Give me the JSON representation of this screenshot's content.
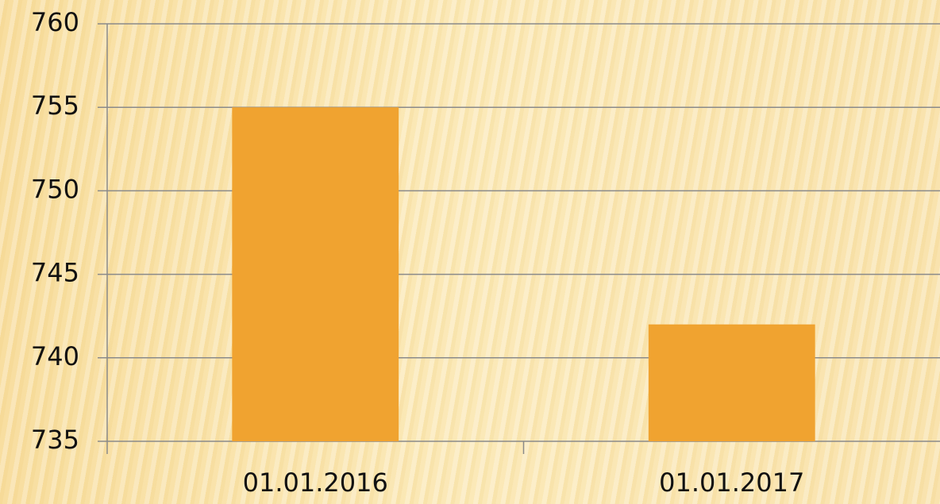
{
  "chart_data": {
    "type": "bar",
    "categories": [
      "01.01.2016",
      "01.01.2017"
    ],
    "values": [
      755,
      742
    ],
    "color": "#f0a330",
    "ylim": [
      735,
      760
    ],
    "yticks": [
      735,
      740,
      745,
      750,
      755,
      760
    ],
    "grid": true
  }
}
